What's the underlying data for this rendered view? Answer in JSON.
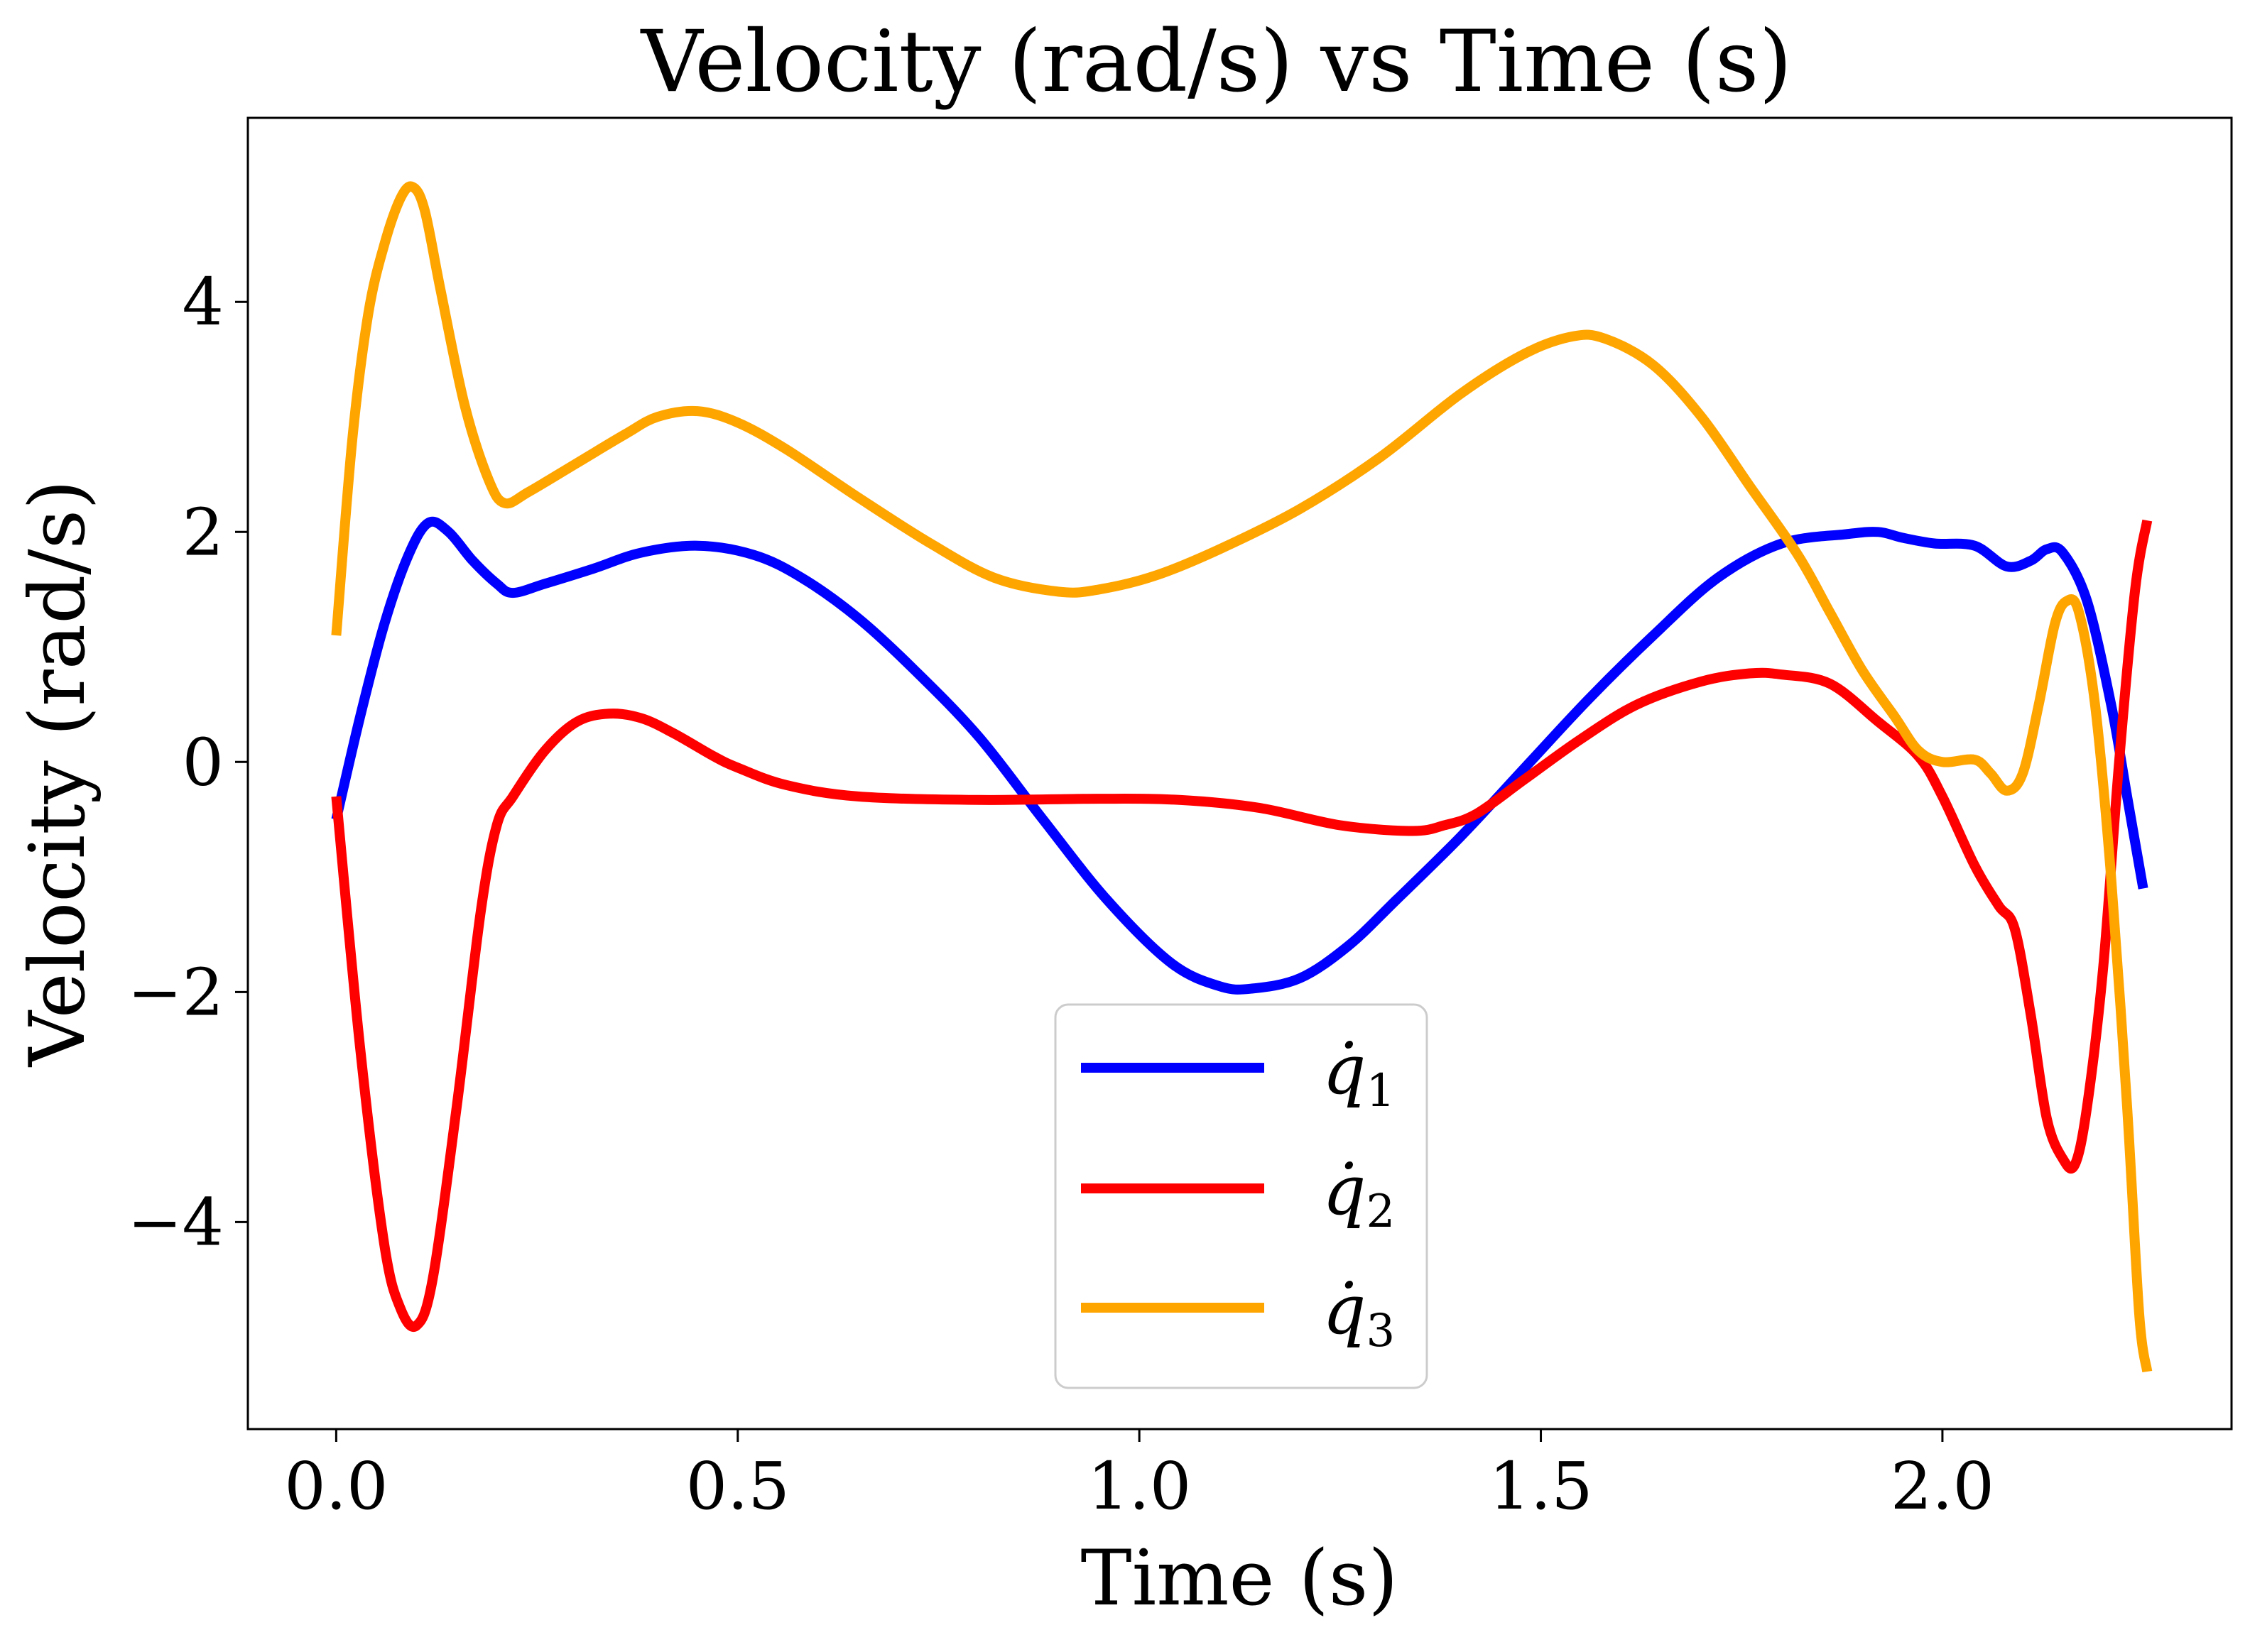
{
  "chart_data": {
    "type": "line",
    "title": "Velocity (rad/s) vs Time (s)",
    "xlabel": "Time (s)",
    "ylabel": "Velocity (rad/s)",
    "xlim": [
      -0.11,
      2.36
    ],
    "ylim": [
      -5.8,
      5.6
    ],
    "x_ticks": [
      0.0,
      0.5,
      1.0,
      1.5,
      2.0
    ],
    "x_tick_labels": [
      "0.0",
      "0.5",
      "1.0",
      "1.5",
      "2.0"
    ],
    "y_ticks": [
      -4,
      -2,
      0,
      2,
      4
    ],
    "y_tick_labels": [
      "−4",
      "−2",
      "0",
      "2",
      "4"
    ],
    "grid": false,
    "legend_position": "lower-center",
    "series": [
      {
        "name": "q̇₁",
        "label_base": "q̇",
        "label_sub": "1",
        "color": "#0000ff",
        "points": [
          [
            0.0,
            -0.5
          ],
          [
            0.03,
            0.4
          ],
          [
            0.06,
            1.2
          ],
          [
            0.09,
            1.8
          ],
          [
            0.115,
            2.08
          ],
          [
            0.14,
            2.0
          ],
          [
            0.17,
            1.75
          ],
          [
            0.2,
            1.55
          ],
          [
            0.22,
            1.47
          ],
          [
            0.26,
            1.55
          ],
          [
            0.32,
            1.68
          ],
          [
            0.38,
            1.82
          ],
          [
            0.45,
            1.88
          ],
          [
            0.52,
            1.8
          ],
          [
            0.58,
            1.6
          ],
          [
            0.65,
            1.25
          ],
          [
            0.72,
            0.8
          ],
          [
            0.8,
            0.22
          ],
          [
            0.88,
            -0.5
          ],
          [
            0.96,
            -1.2
          ],
          [
            1.04,
            -1.75
          ],
          [
            1.1,
            -1.95
          ],
          [
            1.14,
            -1.97
          ],
          [
            1.2,
            -1.88
          ],
          [
            1.26,
            -1.6
          ],
          [
            1.32,
            -1.2
          ],
          [
            1.4,
            -0.65
          ],
          [
            1.48,
            -0.05
          ],
          [
            1.56,
            0.55
          ],
          [
            1.64,
            1.1
          ],
          [
            1.72,
            1.6
          ],
          [
            1.8,
            1.9
          ],
          [
            1.88,
            1.98
          ],
          [
            1.92,
            2.0
          ],
          [
            1.95,
            1.95
          ],
          [
            1.99,
            1.9
          ],
          [
            2.04,
            1.88
          ],
          [
            2.08,
            1.7
          ],
          [
            2.11,
            1.75
          ],
          [
            2.13,
            1.85
          ],
          [
            2.15,
            1.82
          ],
          [
            2.18,
            1.4
          ],
          [
            2.21,
            0.5
          ],
          [
            2.23,
            -0.3
          ],
          [
            2.25,
            -1.1
          ]
        ]
      },
      {
        "name": "q̇₂",
        "label_base": "q̇",
        "label_sub": "2",
        "color": "#ff0000",
        "points": [
          [
            0.0,
            -0.3
          ],
          [
            0.03,
            -2.5
          ],
          [
            0.06,
            -4.2
          ],
          [
            0.08,
            -4.75
          ],
          [
            0.1,
            -4.9
          ],
          [
            0.12,
            -4.5
          ],
          [
            0.15,
            -3.0
          ],
          [
            0.18,
            -1.3
          ],
          [
            0.2,
            -0.55
          ],
          [
            0.22,
            -0.3
          ],
          [
            0.26,
            0.1
          ],
          [
            0.3,
            0.35
          ],
          [
            0.34,
            0.42
          ],
          [
            0.38,
            0.38
          ],
          [
            0.42,
            0.25
          ],
          [
            0.47,
            0.05
          ],
          [
            0.5,
            -0.05
          ],
          [
            0.56,
            -0.2
          ],
          [
            0.65,
            -0.3
          ],
          [
            0.8,
            -0.33
          ],
          [
            0.95,
            -0.32
          ],
          [
            1.05,
            -0.33
          ],
          [
            1.15,
            -0.4
          ],
          [
            1.25,
            -0.55
          ],
          [
            1.34,
            -0.6
          ],
          [
            1.38,
            -0.55
          ],
          [
            1.42,
            -0.45
          ],
          [
            1.48,
            -0.15
          ],
          [
            1.55,
            0.2
          ],
          [
            1.62,
            0.5
          ],
          [
            1.7,
            0.7
          ],
          [
            1.76,
            0.77
          ],
          [
            1.8,
            0.76
          ],
          [
            1.86,
            0.68
          ],
          [
            1.92,
            0.35
          ],
          [
            1.97,
            0.05
          ],
          [
            2.0,
            -0.3
          ],
          [
            2.04,
            -0.9
          ],
          [
            2.07,
            -1.25
          ],
          [
            2.09,
            -1.45
          ],
          [
            2.11,
            -2.2
          ],
          [
            2.13,
            -3.1
          ],
          [
            2.15,
            -3.45
          ],
          [
            2.165,
            -3.5
          ],
          [
            2.18,
            -3.0
          ],
          [
            2.2,
            -1.8
          ],
          [
            2.22,
            0.0
          ],
          [
            2.24,
            1.5
          ],
          [
            2.255,
            2.1
          ]
        ]
      },
      {
        "name": "q̇₃",
        "label_base": "q̇",
        "label_sub": "3",
        "color": "#ffa500",
        "points": [
          [
            0.0,
            1.1
          ],
          [
            0.02,
            2.8
          ],
          [
            0.04,
            3.9
          ],
          [
            0.06,
            4.5
          ],
          [
            0.08,
            4.9
          ],
          [
            0.095,
            5.0
          ],
          [
            0.11,
            4.8
          ],
          [
            0.13,
            4.1
          ],
          [
            0.16,
            3.1
          ],
          [
            0.19,
            2.45
          ],
          [
            0.21,
            2.25
          ],
          [
            0.24,
            2.35
          ],
          [
            0.3,
            2.6
          ],
          [
            0.36,
            2.85
          ],
          [
            0.4,
            3.0
          ],
          [
            0.45,
            3.05
          ],
          [
            0.5,
            2.95
          ],
          [
            0.56,
            2.72
          ],
          [
            0.65,
            2.3
          ],
          [
            0.74,
            1.9
          ],
          [
            0.82,
            1.6
          ],
          [
            0.9,
            1.48
          ],
          [
            0.95,
            1.5
          ],
          [
            1.02,
            1.62
          ],
          [
            1.1,
            1.85
          ],
          [
            1.2,
            2.2
          ],
          [
            1.3,
            2.65
          ],
          [
            1.4,
            3.2
          ],
          [
            1.48,
            3.55
          ],
          [
            1.54,
            3.7
          ],
          [
            1.58,
            3.68
          ],
          [
            1.64,
            3.45
          ],
          [
            1.7,
            3.0
          ],
          [
            1.76,
            2.4
          ],
          [
            1.82,
            1.8
          ],
          [
            1.86,
            1.3
          ],
          [
            1.9,
            0.8
          ],
          [
            1.94,
            0.4
          ],
          [
            1.97,
            0.1
          ],
          [
            2.0,
            0.0
          ],
          [
            2.04,
            0.02
          ],
          [
            2.06,
            -0.1
          ],
          [
            2.08,
            -0.25
          ],
          [
            2.1,
            -0.1
          ],
          [
            2.12,
            0.5
          ],
          [
            2.14,
            1.2
          ],
          [
            2.155,
            1.4
          ],
          [
            2.17,
            1.3
          ],
          [
            2.19,
            0.5
          ],
          [
            2.21,
            -1.0
          ],
          [
            2.23,
            -3.0
          ],
          [
            2.245,
            -4.8
          ],
          [
            2.255,
            -5.3
          ]
        ]
      }
    ]
  }
}
